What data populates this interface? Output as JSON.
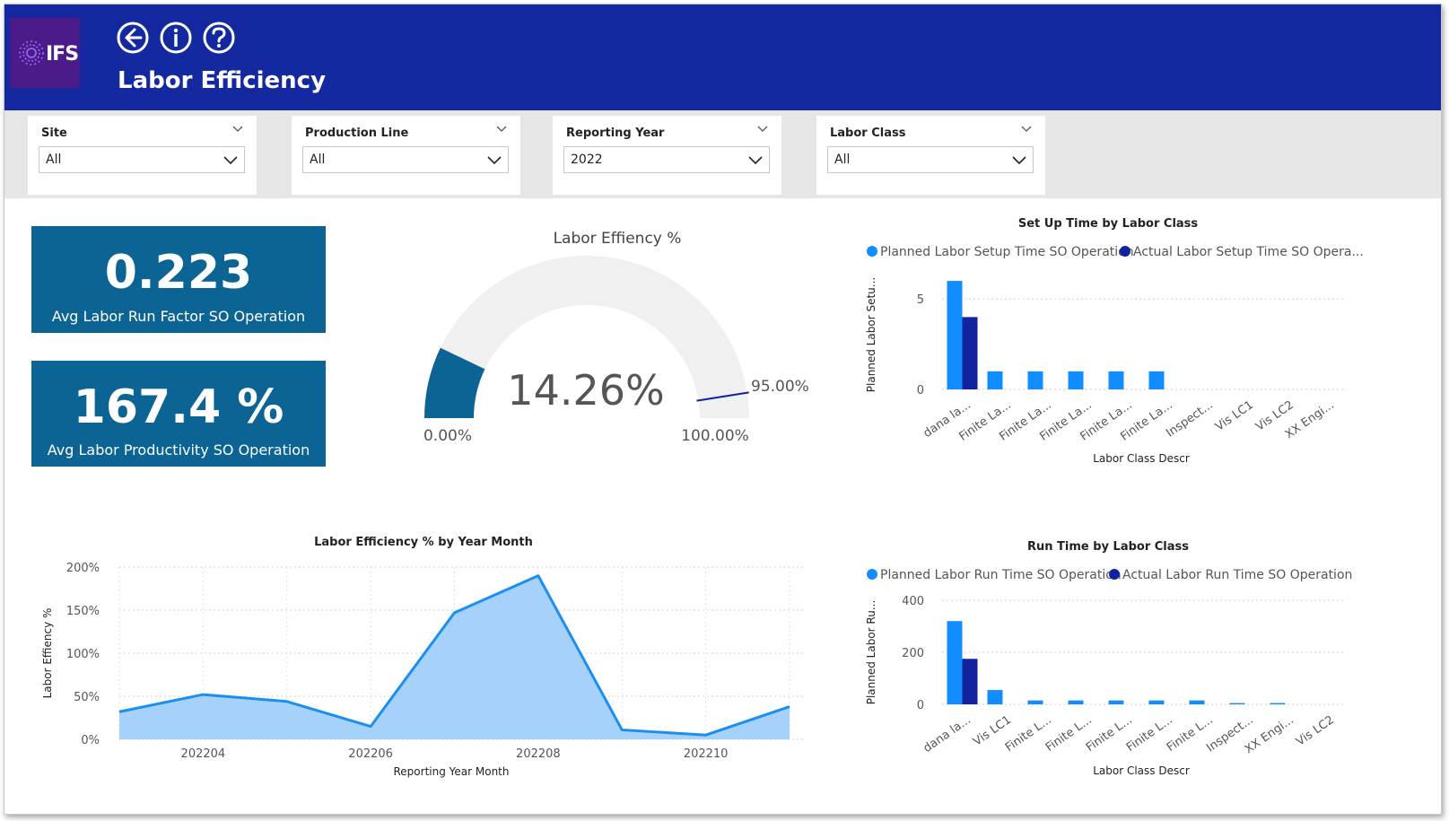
{
  "header": {
    "logo_text": "IFS",
    "title": "Labor Efficiency",
    "buttons": [
      {
        "name": "back-icon"
      },
      {
        "name": "info-icon"
      },
      {
        "name": "help-icon"
      }
    ],
    "background": "#1428a0",
    "logo_background": "#4b1b8a"
  },
  "filters": [
    {
      "title": "Site",
      "value": "All"
    },
    {
      "title": "Production Line",
      "value": "All"
    },
    {
      "title": "Reporting Year",
      "value": "2022"
    },
    {
      "title": "Labor Class",
      "value": "All"
    }
  ],
  "cards": [
    {
      "value": "0.223",
      "label": "Avg Labor Run Factor SO Operation"
    },
    {
      "value": "167.4 %",
      "label": "Avg Labor Productivity SO Operation"
    }
  ],
  "colors": {
    "card": "#0b6493",
    "planned": "#118dff",
    "actual": "#12239e",
    "area_fill": "#a6d1fb",
    "area_line": "#1a8ff0",
    "gauge_track": "#f0f0f0"
  },
  "gauge": {
    "title": "Labor Effiency %",
    "value_label": "14.26%",
    "value": 14.26,
    "min": 0,
    "max": 100,
    "target": 95,
    "min_label": "0.00%",
    "max_label": "100.00%",
    "target_label": "95.00%"
  },
  "chart_data": [
    {
      "type": "bar",
      "title": "Set Up Time by Labor Class",
      "xlabel": "Labor Class Descr",
      "ylabel": "Planned Labor Setu...",
      "legend": "top-left",
      "categories": [
        "dana la...",
        "Finite La...",
        "Finite La...",
        "Finite La...",
        "Finite La...",
        "Finite La...",
        "Inspect...",
        "Vis LC1",
        "Vis LC2",
        "XX Engi..."
      ],
      "series": [
        {
          "name": "Planned Labor Setup Time SO Operation",
          "values": [
            6,
            1,
            1,
            1,
            1,
            1,
            0,
            0,
            0,
            0
          ]
        },
        {
          "name": "Actual Labor Setup Time SO Opera...",
          "values": [
            4,
            0,
            0,
            0,
            0,
            0,
            0,
            0,
            0,
            0
          ]
        }
      ],
      "yticks": [
        "0",
        "5"
      ],
      "ylim": [
        0,
        6.5
      ],
      "grid": true
    },
    {
      "type": "bar",
      "title": "Run Time by Labor Class",
      "xlabel": "Labor Class Descr",
      "ylabel": "Planned Labor Ru...",
      "legend": "top-left",
      "categories": [
        "dana la...",
        "Vis LC1",
        "Finite L...",
        "Finite L...",
        "Finite L...",
        "Finite L...",
        "Finite L...",
        "Inspect...",
        "XX Engi...",
        "Vis LC2"
      ],
      "series": [
        {
          "name": "Planned Labor Run Time SO Operation",
          "values": [
            320,
            55,
            15,
            15,
            15,
            15,
            15,
            5,
            5,
            0
          ]
        },
        {
          "name": "Actual Labor Run Time SO Operation",
          "values": [
            175,
            0,
            0,
            0,
            0,
            0,
            0,
            0,
            0,
            0
          ]
        }
      ],
      "yticks": [
        "0",
        "200",
        "400"
      ],
      "ylim": [
        0,
        400
      ],
      "grid": true
    },
    {
      "type": "area",
      "title": "Labor Efficiency % by Year Month",
      "xlabel": "Reporting Year Month",
      "ylabel": "Labor Effiency %",
      "x": [
        "202203",
        "202204",
        "202205",
        "202206",
        "202207",
        "202208",
        "202209",
        "202210",
        "202211"
      ],
      "xticks": [
        "202204",
        "202206",
        "202208",
        "202210"
      ],
      "values": [
        32,
        52,
        44,
        15,
        147,
        190,
        11,
        5,
        38
      ],
      "yticks": [
        "0%",
        "50%",
        "100%",
        "150%",
        "200%"
      ],
      "ylim": [
        0,
        200
      ],
      "grid": true
    }
  ]
}
